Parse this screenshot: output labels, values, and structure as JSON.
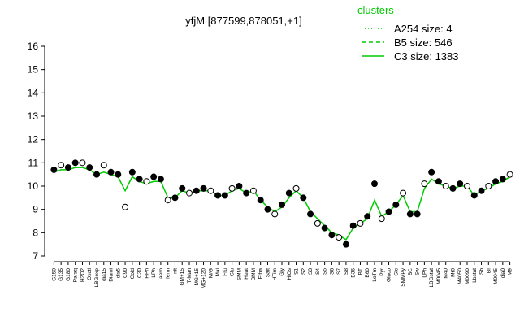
{
  "chart_data": {
    "type": "line",
    "title": "yfjM [877599,878051,+1]",
    "categories": [
      "G150",
      "G135",
      "G180",
      "Paraq",
      "H2O2",
      "Oxctl",
      "LBGexp",
      "dia15",
      "Diami",
      "dia5",
      "C90",
      "Cold",
      "C30",
      "HPh",
      "LPh",
      "aero",
      "ferm",
      "nit",
      "GM+15",
      "T-Man",
      "MG+15",
      "MG+120",
      "M/G",
      "Mal",
      "Fru",
      "Glu",
      "SMM",
      "Heat",
      "BMM",
      "Etha",
      "Salt",
      "HTim",
      "Gly",
      "HiOs",
      "S1",
      "S2",
      "S3",
      "S4",
      "S5",
      "S6",
      "S7",
      "S8",
      "B36",
      "BT",
      "B60",
      "LoTm",
      "Pyr",
      "Gluco",
      "Glc",
      "SMMPy",
      "BC",
      "Sw",
      "LPh",
      "LBGstat",
      "M0045",
      "M40",
      "Mt0",
      "M4050",
      "M0090",
      "Lbstat",
      "Sb",
      "BI",
      "M0045",
      "dia0",
      "M9"
    ],
    "points": {
      "color": "#000000",
      "values": [
        10.7,
        10.9,
        10.8,
        11.0,
        11.0,
        10.8,
        10.5,
        10.9,
        10.6,
        10.5,
        9.1,
        10.6,
        10.3,
        10.2,
        10.4,
        10.3,
        9.4,
        9.5,
        9.9,
        9.7,
        9.8,
        9.9,
        9.8,
        9.6,
        9.6,
        9.9,
        10.0,
        9.7,
        9.8,
        9.4,
        9.0,
        8.8,
        9.2,
        9.7,
        9.9,
        9.5,
        8.8,
        8.4,
        8.2,
        7.9,
        7.8,
        7.5,
        8.3,
        8.4,
        8.7,
        10.1,
        8.6,
        8.9,
        9.2,
        9.7,
        8.8,
        8.8,
        10.1,
        10.6,
        10.2,
        10.0,
        9.9,
        10.1,
        10.0,
        9.6,
        9.8,
        10.0,
        10.2,
        10.3,
        10.5
      ]
    },
    "line": {
      "color": "#00cc00",
      "values": [
        10.6,
        10.7,
        10.7,
        10.8,
        10.8,
        10.7,
        10.5,
        10.6,
        10.5,
        10.4,
        9.8,
        10.4,
        10.2,
        10.1,
        10.2,
        10.2,
        9.5,
        9.5,
        9.8,
        9.7,
        9.8,
        9.8,
        9.8,
        9.6,
        9.6,
        9.8,
        9.9,
        9.7,
        9.8,
        9.4,
        9.1,
        8.9,
        9.1,
        9.5,
        9.8,
        9.5,
        8.9,
        8.6,
        8.3,
        8.0,
        7.9,
        7.7,
        8.2,
        8.4,
        8.6,
        9.4,
        8.7,
        8.9,
        9.2,
        9.6,
        8.9,
        8.9,
        9.9,
        10.3,
        10.1,
        10.0,
        9.9,
        10.0,
        10.0,
        9.6,
        9.8,
        9.9,
        10.1,
        10.2,
        10.4
      ]
    },
    "legend": {
      "title": "clusters",
      "color": "#00cc00",
      "entries": [
        {
          "name": "A254 size: 4",
          "dash": "dotted"
        },
        {
          "name": "B5 size: 546",
          "dash": "dashed"
        },
        {
          "name": "C3 size: 1383",
          "dash": "solid"
        }
      ]
    },
    "ylim": [
      7,
      16
    ],
    "yticks": [
      7,
      8,
      9,
      10,
      11,
      12,
      13,
      14,
      15,
      16
    ]
  }
}
